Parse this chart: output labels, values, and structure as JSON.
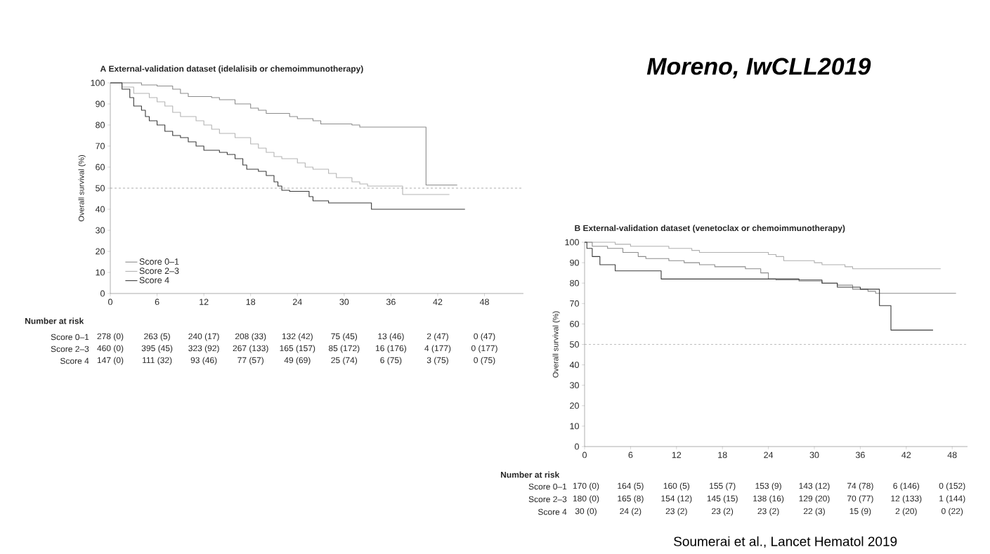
{
  "chart_data": [
    {
      "type": "step",
      "title": "A  External-validation dataset (idelalisib or chemoimmunotherapy)",
      "xlabel": null,
      "ylabel": "Overall survival (%)",
      "xlim": [
        0,
        53
      ],
      "xticks": [
        0,
        6,
        12,
        18,
        24,
        30,
        36,
        42,
        48
      ],
      "ylim": [
        0,
        100
      ],
      "yticks": [
        0,
        10,
        20,
        30,
        40,
        50,
        60,
        70,
        80,
        90,
        100
      ],
      "legend": "bottom left",
      "ref_lines": [
        {
          "axis": "y",
          "value": 50,
          "color": "#8a8a8a",
          "line_style": "dashed"
        }
      ],
      "series": [
        {
          "name": "Score 0–1",
          "color": "#8c8c8c",
          "x": [
            0,
            4,
            6,
            8,
            9,
            10,
            13,
            14,
            16,
            18,
            19,
            20,
            23,
            24,
            26,
            27,
            31,
            32,
            40.5,
            44.5
          ],
          "values": [
            100,
            99,
            98.5,
            97,
            95,
            93.5,
            93,
            92,
            90,
            88,
            87,
            85.5,
            84,
            83,
            82,
            80.5,
            80,
            79,
            51.5,
            51.5
          ]
        },
        {
          "name": "Score 2–3",
          "color": "#b4b4b4",
          "x": [
            0,
            1.5,
            3,
            5,
            6,
            7,
            8,
            9,
            11,
            12,
            13,
            14,
            16,
            18,
            19,
            20,
            21,
            22,
            24,
            25,
            26,
            28,
            29,
            31,
            32,
            33,
            37.5,
            43.5
          ],
          "values": [
            100,
            98,
            95,
            93,
            91,
            89,
            86,
            84,
            82,
            80,
            78,
            76,
            74,
            71,
            69,
            67,
            65,
            64,
            62,
            60,
            59,
            57,
            55,
            53,
            52,
            51,
            47,
            47
          ]
        },
        {
          "name": "Score 4",
          "color": "#3a3a3a",
          "x": [
            0,
            1.5,
            2.5,
            3,
            4,
            4.5,
            5,
            6,
            7,
            8,
            9,
            10,
            11,
            12,
            14,
            15,
            16,
            17,
            17.5,
            19,
            20,
            21,
            21.5,
            22,
            23,
            25.5,
            26,
            28,
            33.5,
            45.5
          ],
          "values": [
            100,
            97,
            93,
            89,
            87,
            84,
            82,
            80,
            77,
            75,
            74,
            72,
            70,
            68,
            67,
            66,
            64,
            61,
            59,
            58,
            56,
            53,
            51,
            49,
            48.5,
            46,
            44,
            43,
            40,
            40
          ]
        }
      ],
      "annotations": [
        "Number at risk",
        "Score 0–1",
        "278 (0)",
        "263 (5)",
        "240 (17)",
        "208 (33)",
        "132 (42)",
        "75 (45)",
        "13 (46)",
        "2 (47)",
        "0 (47)",
        "Score 2–3",
        "460 (0)",
        "395 (45)",
        "323 (92)",
        "267 (133)",
        "165 (157)",
        "85 (172)",
        "16 (176)",
        "4 (177)",
        "0 (177)",
        "Score 4",
        "147 (0)",
        "111 (32)",
        "93 (46)",
        "77 (57)",
        "49 (69)",
        "25 (74)",
        "6 (75)",
        "3 (75)",
        "0 (75)",
        "Moreno, IwCLL2019"
      ]
    },
    {
      "type": "step",
      "title": "B  External-validation dataset (venetoclax or chemoimmunotherapy)",
      "ylabel": "Overall survival (%)",
      "xlim": [
        0,
        50
      ],
      "xticks": [
        0,
        6,
        12,
        18,
        24,
        30,
        36,
        42,
        48
      ],
      "ylim": [
        0,
        100
      ],
      "yticks": [
        0,
        10,
        20,
        30,
        40,
        50,
        60,
        70,
        80,
        90,
        100
      ],
      "ref_lines": [
        {
          "axis": "y",
          "value": 50,
          "color": "#a0a0a0",
          "line_style": "dashed"
        }
      ],
      "series": [
        {
          "color": "#b0b0b0",
          "x": [
            0,
            4,
            6,
            11,
            14,
            15,
            24,
            25,
            26,
            30,
            31,
            34,
            35,
            46.5
          ],
          "values": [
            100,
            99,
            98,
            97,
            96,
            95,
            94,
            93,
            91,
            90,
            89,
            88,
            87,
            87
          ]
        },
        {
          "color": "#8c8c8c",
          "x": [
            0,
            1,
            3,
            5,
            7,
            8,
            11,
            13,
            15,
            17,
            21,
            23,
            24,
            25,
            28,
            31,
            33,
            35,
            37,
            38,
            48.5
          ],
          "values": [
            100,
            98,
            97,
            95,
            93,
            92,
            91,
            90,
            89,
            88,
            87,
            85,
            82,
            81.5,
            81,
            80,
            79,
            77,
            76,
            75,
            75
          ]
        },
        {
          "color": "#3a3a3a",
          "x": [
            0,
            0.3,
            1,
            2,
            4,
            10,
            28,
            31,
            33,
            36,
            38.5,
            40,
            45.5
          ],
          "values": [
            100,
            97,
            93,
            89,
            86,
            82,
            81.5,
            80,
            78,
            77,
            69,
            57,
            57
          ]
        }
      ],
      "annotations": [
        "Number at risk",
        "Score 0–1",
        "170 (0)",
        "164 (5)",
        "160 (5)",
        "155 (7)",
        "153 (9)",
        "143 (12)",
        "74 (78)",
        "6 (146)",
        "0 (152)",
        "Score 2–3",
        "180 (0)",
        "165 (8)",
        "154 (12)",
        "145 (15)",
        "138 (16)",
        "129 (20)",
        "70 (77)",
        "12 (133)",
        "1 (144)",
        "Score 4",
        "30 (0)",
        "24 (2)",
        "23 (2)",
        "23 (2)",
        "23 (2)",
        "22 (3)",
        "15 (9)",
        "2 (20)",
        "0 (22)",
        "Soumerai et al., Lancet Hematol 2019"
      ]
    }
  ]
}
